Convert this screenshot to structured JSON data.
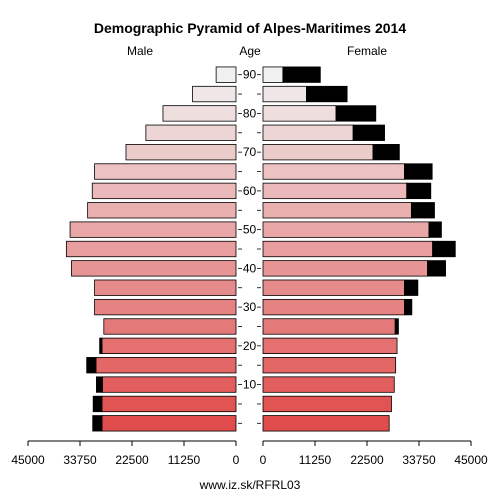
{
  "chart_data": {
    "type": "bar",
    "title": "Demographic Pyramid of Alpes-Maritimes 2014",
    "left_header": "Male",
    "center_header": "Age",
    "right_header": "Female",
    "footer": "www.iz.sk/RFRL03",
    "xlim": [
      0,
      45000
    ],
    "x_ticks": [
      {
        "value": 45000,
        "label": "45000"
      },
      {
        "value": 33750,
        "label": "33750"
      },
      {
        "value": 22500,
        "label": "22500"
      },
      {
        "value": 11250,
        "label": "11250"
      },
      {
        "value": 0,
        "label": "0"
      }
    ],
    "age_groups": [
      "0-4",
      "5-9",
      "10-14",
      "15-19",
      "20-24",
      "25-29",
      "30-34",
      "35-39",
      "40-44",
      "45-49",
      "50-54",
      "55-59",
      "60-64",
      "65-69",
      "70-74",
      "75-79",
      "80-84",
      "85-89",
      "90+"
    ],
    "age_tick_labels": [
      {
        "group_index": 2,
        "label": "10"
      },
      {
        "group_index": 4,
        "label": "20"
      },
      {
        "group_index": 6,
        "label": "30"
      },
      {
        "group_index": 8,
        "label": "40"
      },
      {
        "group_index": 10,
        "label": "50"
      },
      {
        "group_index": 12,
        "label": "60"
      },
      {
        "group_index": 14,
        "label": "70"
      },
      {
        "group_index": 16,
        "label": "80"
      },
      {
        "group_index": 18,
        "label": "90"
      }
    ],
    "series": [
      {
        "side": "male",
        "values": [
          29000,
          29000,
          28900,
          30300,
          29000,
          28600,
          30600,
          30600,
          35600,
          36700,
          35900,
          32100,
          31100,
          30600,
          23800,
          19500,
          15800,
          9400,
          4300
        ],
        "excess": [
          2000,
          1900,
          1300,
          2000,
          500,
          0,
          0,
          0,
          0,
          0,
          0,
          0,
          0,
          0,
          0,
          0,
          0,
          0,
          0
        ]
      },
      {
        "side": "female",
        "values": [
          27300,
          27800,
          28400,
          28700,
          29000,
          29300,
          32200,
          33500,
          39500,
          41600,
          38600,
          37100,
          36300,
          36600,
          29500,
          26300,
          24400,
          18200,
          12400
        ],
        "excess": [
          0,
          0,
          0,
          0,
          0,
          0,
          0,
          0,
          0,
          0,
          0,
          0,
          0,
          0,
          0,
          0,
          0,
          0,
          0
        ]
      }
    ],
    "excess_color": "#000000",
    "colors_bottom_to_top": [
      "#e04b4b",
      "#f0f0f0"
    ]
  }
}
